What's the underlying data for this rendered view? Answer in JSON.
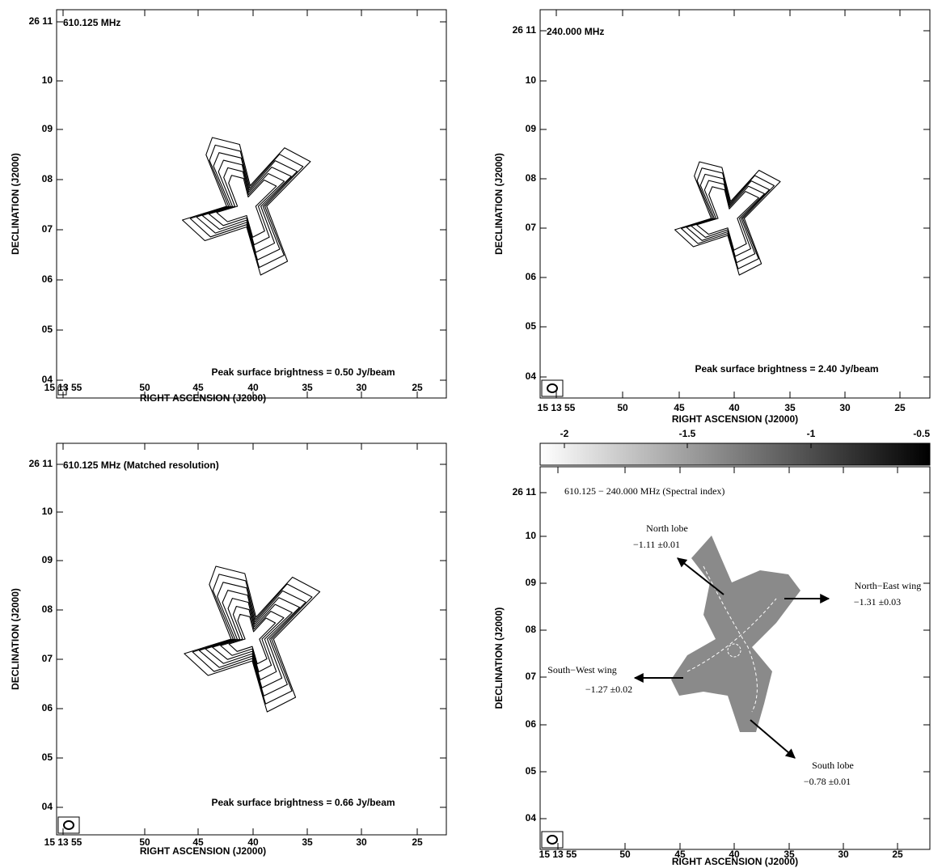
{
  "panels": [
    {
      "title": "610.125 MHz",
      "y_label": "DECLINATION (J2000)",
      "x_label": "RIGHT ASCENSION (J2000)",
      "y_ticks": [
        "26 11",
        "10",
        "09",
        "08",
        "07",
        "06",
        "05",
        "04"
      ],
      "x_ticks": [
        "15 13 55",
        "50",
        "45",
        "40",
        "35",
        "30",
        "25"
      ],
      "note": "Peak surface brightness = 0.50 Jy/beam"
    },
    {
      "title": "240.000 MHz",
      "y_label": "DECLINATION (J2000)",
      "x_label": "RIGHT ASCENSION (J2000)",
      "y_ticks": [
        "26 11",
        "10",
        "09",
        "08",
        "07",
        "06",
        "05",
        "04"
      ],
      "x_ticks": [
        "15 13 55",
        "50",
        "45",
        "40",
        "35",
        "30",
        "25"
      ],
      "note": "Peak surface brightness = 2.40 Jy/beam"
    },
    {
      "title": "610.125 MHz (Matched resolution)",
      "y_label": "DECLINATION (J2000)",
      "x_label": "RIGHT ASCENSION (J2000)",
      "y_ticks": [
        "26 11",
        "10",
        "09",
        "08",
        "07",
        "06",
        "05",
        "04"
      ],
      "x_ticks": [
        "15 13 55",
        "50",
        "45",
        "40",
        "35",
        "30",
        "25"
      ],
      "note": "Peak surface brightness = 0.66 Jy/beam"
    },
    {
      "title": "610.125 − 240.000 MHz (Spectral index)",
      "y_label": "DECLINATION (J2000)",
      "x_label": "RIGHT ASCENSION (J2000)",
      "y_ticks": [
        "26 11",
        "10",
        "09",
        "08",
        "07",
        "06",
        "05",
        "04"
      ],
      "x_ticks": [
        "15 13 55",
        "50",
        "45",
        "40",
        "35",
        "30",
        "25"
      ]
    }
  ],
  "colorbar": {
    "ticks": [
      "-2",
      "-1.5",
      "-1",
      "-0.5"
    ]
  },
  "annotations": [
    {
      "name": "North lobe",
      "value": "−1.11 ±0.01"
    },
    {
      "name": "North−East wing",
      "value": "−1.31 ±0.03"
    },
    {
      "name": "South−West wing",
      "value": "−1.27 ±0.02"
    },
    {
      "name": "South lobe",
      "value": "−0.78 ±0.01"
    }
  ]
}
